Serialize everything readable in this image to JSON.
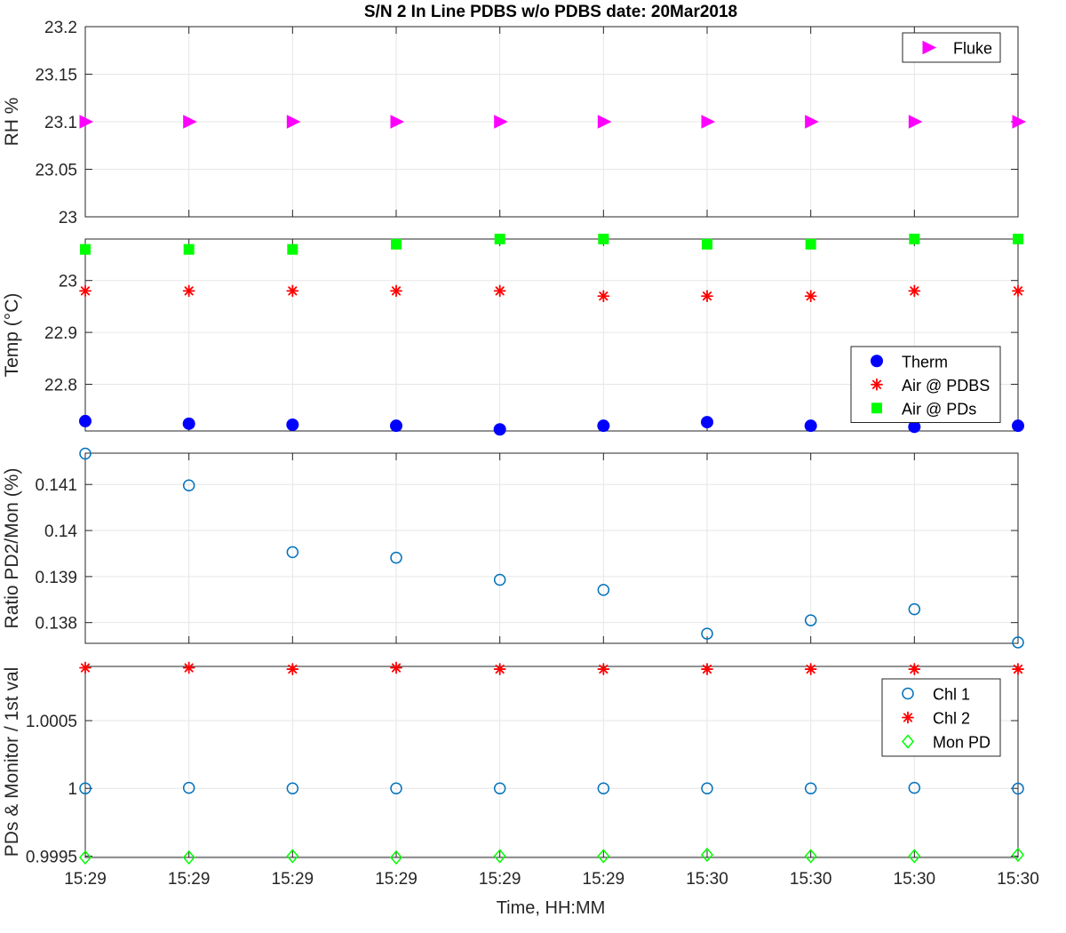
{
  "figure": {
    "title": "S/N 2 In Line PDBS w/o PDBS date: 20Mar2018",
    "xlabel": "Time, HH:MM",
    "xticks": [
      "15:29",
      "15:29",
      "15:29",
      "15:29",
      "15:29",
      "15:29",
      "15:30",
      "15:30",
      "15:30",
      "15:30"
    ]
  },
  "chart_data": [
    {
      "type": "scatter",
      "ylabel": "RH %",
      "ylim": [
        23,
        23.2
      ],
      "yticks": [
        "23",
        "23.05",
        "23.1",
        "23.15",
        "23.2"
      ],
      "grid": true,
      "legend_position": "top-right",
      "x": [
        1,
        2,
        3,
        4,
        5,
        6,
        7,
        8,
        9,
        10
      ],
      "series": [
        {
          "name": "Fluke",
          "marker": "triangle-right",
          "color": "#ff00ff",
          "values": [
            23.1,
            23.1,
            23.1,
            23.1,
            23.1,
            23.1,
            23.1,
            23.1,
            23.1,
            23.1
          ]
        }
      ]
    },
    {
      "type": "scatter",
      "ylabel": "Temp (°C)",
      "ylim": [
        22.71,
        23.08
      ],
      "yticks": [
        "22.8",
        "22.9",
        "23"
      ],
      "grid": true,
      "legend_position": "right",
      "x": [
        1,
        2,
        3,
        4,
        5,
        6,
        7,
        8,
        9,
        10
      ],
      "series": [
        {
          "name": "Therm",
          "marker": "filled-circle",
          "color": "#0000ff",
          "values": [
            22.729,
            22.724,
            22.722,
            22.72,
            22.713,
            22.72,
            22.727,
            22.72,
            22.718,
            22.72
          ]
        },
        {
          "name": "Air @ PDBS",
          "marker": "asterisk",
          "color": "#ff0000",
          "values": [
            22.98,
            22.98,
            22.98,
            22.98,
            22.98,
            22.97,
            22.97,
            22.97,
            22.98,
            22.98
          ]
        },
        {
          "name": "Air @ PDs",
          "marker": "filled-square",
          "color": "#00ff00",
          "values": [
            23.06,
            23.06,
            23.06,
            23.07,
            23.08,
            23.08,
            23.07,
            23.07,
            23.08,
            23.08
          ]
        }
      ]
    },
    {
      "type": "scatter",
      "ylabel": "Ratio PD2/Mon (%)",
      "ylim": [
        0.13755,
        0.14168
      ],
      "yticks": [
        "0.138",
        "0.139",
        "0.14",
        "0.141"
      ],
      "grid": true,
      "x": [
        1,
        2,
        3,
        4,
        5,
        6,
        7,
        8,
        9,
        10
      ],
      "series": [
        {
          "name": "",
          "marker": "open-circle",
          "color": "#0072bd",
          "values": [
            0.14167,
            0.14098,
            0.13953,
            0.13941,
            0.13893,
            0.13871,
            0.13776,
            0.13805,
            0.13829,
            0.13757
          ]
        }
      ]
    },
    {
      "type": "scatter",
      "ylabel": "PDs & Monitor / 1st val",
      "ylim": [
        0.99949,
        1.0009
      ],
      "yticks": [
        "0.9995",
        "1",
        "1.0005"
      ],
      "grid": true,
      "legend_position": "top-right",
      "x": [
        1,
        2,
        3,
        4,
        5,
        6,
        7,
        8,
        9,
        10
      ],
      "series": [
        {
          "name": "Chl 1",
          "marker": "open-circle",
          "color": "#0072bd",
          "values": [
            1.0,
            1.000004,
            1.0,
            1.0,
            1.0,
            1.0,
            1.0,
            1.0,
            1.000004,
            0.999998
          ]
        },
        {
          "name": "Chl 2",
          "marker": "asterisk",
          "color": "#ff0000",
          "values": [
            1.00089,
            1.00089,
            1.00088,
            1.00089,
            1.00088,
            1.00088,
            1.00088,
            1.00088,
            1.00088,
            1.00088
          ]
        },
        {
          "name": "Mon PD",
          "marker": "open-diamond",
          "color": "#00ff00",
          "values": [
            0.99949,
            0.99949,
            0.9995,
            0.99949,
            0.9995,
            0.9995,
            0.99951,
            0.9995,
            0.9995,
            0.99951
          ]
        }
      ]
    }
  ]
}
